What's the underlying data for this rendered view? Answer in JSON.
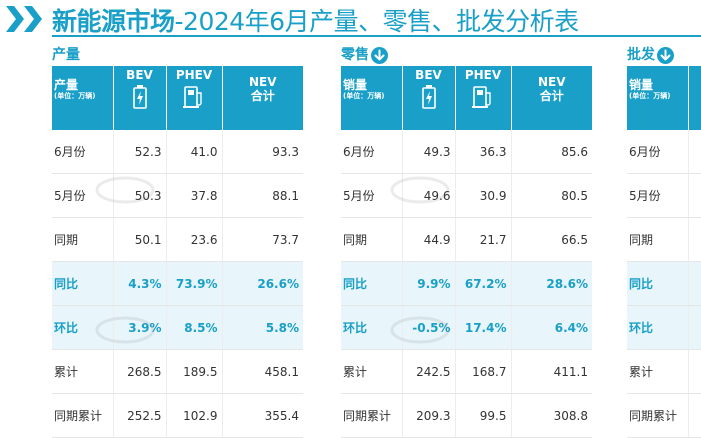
{
  "title": {
    "bold": "新能源市场",
    "rest": "-2024年6月产量、零售、批发分析表"
  },
  "production": {
    "label": "产量",
    "header": {
      "main": "产量",
      "unit": "(单位：万辆)",
      "bev": "BEV",
      "phev": "PHEV",
      "nev_top": "NEV",
      "nev_bottom": "合计"
    },
    "rows": [
      {
        "label": "6月份",
        "bev": "52.3",
        "phev": "41.0",
        "nev": "93.3"
      },
      {
        "label": "5月份",
        "bev": "50.3",
        "phev": "37.8",
        "nev": "88.1"
      },
      {
        "label": "同期",
        "bev": "50.1",
        "phev": "23.6",
        "nev": "73.7"
      },
      {
        "label": "同比",
        "bev": "4.3%",
        "phev": "73.9%",
        "nev": "26.6%"
      },
      {
        "label": "环比",
        "bev": "3.9%",
        "phev": "8.5%",
        "nev": "5.8%"
      },
      {
        "label": "累计",
        "bev": "268.5",
        "phev": "189.5",
        "nev": "458.1"
      },
      {
        "label": "同期累计",
        "bev": "252.5",
        "phev": "102.9",
        "nev": "355.4"
      }
    ]
  },
  "retail": {
    "label": "零售",
    "header": {
      "main": "销量",
      "unit": "(单位：万辆)",
      "bev": "BEV",
      "phev": "PHEV",
      "nev_top": "NEV",
      "nev_bottom": "合计"
    },
    "rows": [
      {
        "label": "6月份",
        "bev": "49.3",
        "phev": "36.3",
        "nev": "85.6"
      },
      {
        "label": "5月份",
        "bev": "49.6",
        "phev": "30.9",
        "nev": "80.5"
      },
      {
        "label": "同期",
        "bev": "44.9",
        "phev": "21.7",
        "nev": "66.5"
      },
      {
        "label": "同比",
        "bev": "9.9%",
        "phev": "67.2%",
        "nev": "28.6%"
      },
      {
        "label": "环比",
        "bev": "-0.5%",
        "phev": "17.4%",
        "nev": "6.4%"
      },
      {
        "label": "累计",
        "bev": "242.5",
        "phev": "168.7",
        "nev": "411.1"
      },
      {
        "label": "同期累计",
        "bev": "209.3",
        "phev": "99.5",
        "nev": "308.8"
      }
    ]
  },
  "wholesale": {
    "label": "批发",
    "header": {
      "main": "销量",
      "unit": "(单位：万辆)"
    },
    "rows": [
      {
        "label": "6月份"
      },
      {
        "label": "5月份"
      },
      {
        "label": "同期"
      },
      {
        "label": "同比"
      },
      {
        "label": "环比"
      },
      {
        "label": "累计"
      },
      {
        "label": "同期累计"
      }
    ]
  },
  "colors": {
    "accent": "#1aa0c8",
    "highlight_bg": "#e8f5fa"
  },
  "icons": {
    "title": "double-chevron-icon",
    "section": "down-arrow-circle-icon",
    "bev": "battery-icon",
    "phev": "fuel-pump-plug-icon"
  }
}
